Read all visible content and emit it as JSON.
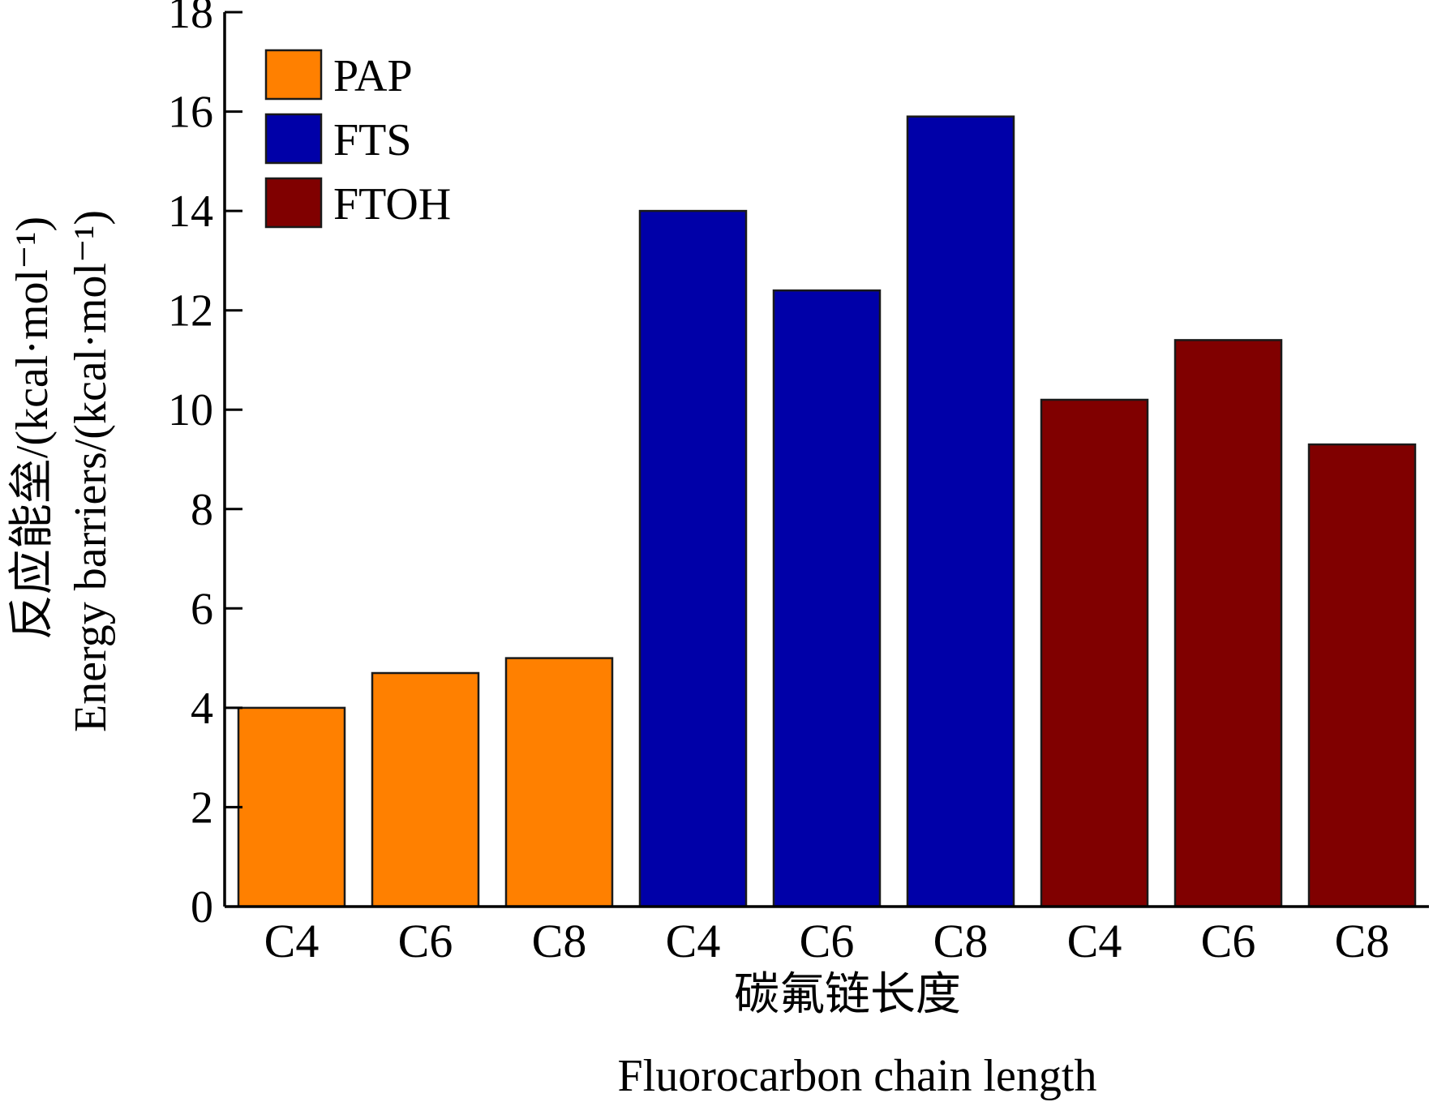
{
  "chart_data": {
    "type": "bar",
    "title": "",
    "xlabel_cn": "碳氟链长度",
    "xlabel_en": "Fluorocarbon chain length",
    "ylabel_cn": "反应能垒/(kcal·mol⁻¹)",
    "ylabel_en": "Energy barriers/(kcal·mol⁻¹)",
    "ylim": [
      0,
      18
    ],
    "yticks": [
      "0",
      "2",
      "4",
      "6",
      "8",
      "10",
      "12",
      "14",
      "16",
      "18"
    ],
    "grid": false,
    "legend_position": "top-left",
    "categories": [
      "C4",
      "C6",
      "C8",
      "C4",
      "C6",
      "C8",
      "C4",
      "C6",
      "C8"
    ],
    "series": [
      {
        "name": "PAP",
        "color": "#FF8000",
        "values": [
          4.0,
          4.7,
          5.0,
          null,
          null,
          null,
          null,
          null,
          null
        ]
      },
      {
        "name": "FTS",
        "color": "#0000A8",
        "values": [
          null,
          null,
          null,
          14.0,
          12.4,
          15.9,
          null,
          null,
          null
        ]
      },
      {
        "name": "FTOH",
        "color": "#800000",
        "values": [
          null,
          null,
          null,
          null,
          null,
          null,
          10.2,
          11.4,
          9.3
        ]
      }
    ]
  }
}
